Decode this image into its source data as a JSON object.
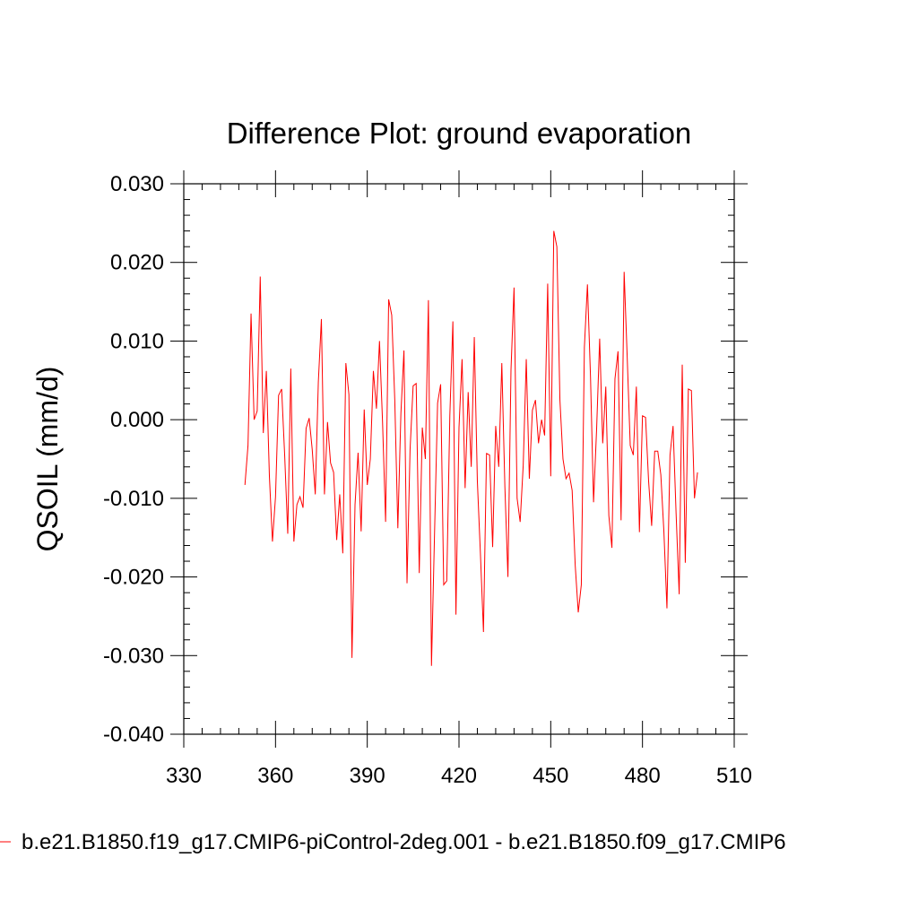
{
  "chart_data": {
    "type": "line",
    "title": "Difference Plot: ground evaporation",
    "ylabel": "QSOIL  (mm/d)",
    "xlabel": "",
    "xlim": [
      330,
      510
    ],
    "ylim": [
      -0.04,
      0.03
    ],
    "xticks": [
      330,
      360,
      390,
      420,
      450,
      480,
      510
    ],
    "xtick_labels": [
      "330",
      "360",
      "390",
      "420",
      "450",
      "480",
      "510"
    ],
    "yticks": [
      -0.04,
      -0.03,
      -0.02,
      -0.01,
      0.0,
      0.01,
      0.02,
      0.03
    ],
    "ytick_labels": [
      "-0.040",
      "-0.030",
      "-0.020",
      "-0.010",
      "0.000",
      "0.010",
      "0.020",
      "0.030"
    ],
    "grid": false,
    "legend_position": "bottom",
    "series": [
      {
        "name": "b.e21.B1850.f19_g17.CMIP6-piControl-2deg.001 - b.e21.B1850.f09_g17.CMIP6",
        "color": "#ff0000",
        "x_start": 350,
        "x_step": 1,
        "values": [
          -0.0083,
          -0.0033,
          0.0135,
          0.0,
          0.0011,
          0.0182,
          -0.0017,
          0.0062,
          -0.0072,
          -0.0155,
          -0.0098,
          0.0031,
          0.0039,
          -0.0046,
          -0.0145,
          0.0065,
          -0.0155,
          -0.0108,
          -0.0098,
          -0.0112,
          -0.0011,
          0.0002,
          -0.0038,
          -0.0095,
          0.0048,
          0.0128,
          -0.0095,
          -0.0003,
          -0.0055,
          -0.0067,
          -0.0153,
          -0.0095,
          -0.017,
          0.0072,
          0.0032,
          -0.0303,
          -0.0108,
          -0.0042,
          -0.0142,
          0.0013,
          -0.0083,
          -0.005,
          0.0062,
          0.0014,
          0.01,
          -0.0003,
          -0.013,
          0.0153,
          0.0133,
          0.0025,
          -0.0138,
          0.0008,
          0.0088,
          -0.0208,
          -0.0038,
          0.0043,
          0.0046,
          -0.0195,
          -0.001,
          -0.005,
          0.0152,
          -0.0313,
          -0.0145,
          0.0021,
          0.0045,
          -0.021,
          -0.0205,
          0.0005,
          0.0125,
          -0.0248,
          -0.001,
          0.0077,
          -0.0087,
          0.0035,
          -0.006,
          0.0105,
          -0.0078,
          -0.017,
          -0.027,
          -0.0043,
          -0.0045,
          -0.0162,
          -0.0008,
          -0.006,
          0.0072,
          -0.0085,
          -0.02,
          0.0063,
          0.0168,
          -0.01,
          -0.013,
          -0.0058,
          0.0077,
          -0.0075,
          0.0012,
          0.0025,
          -0.003,
          0.0,
          -0.002,
          0.0173,
          -0.0072,
          0.024,
          0.022,
          0.0025,
          -0.005,
          -0.0075,
          -0.0068,
          -0.009,
          -0.0185,
          -0.0245,
          -0.021,
          0.0092,
          0.0172,
          0.0055,
          -0.0105,
          -0.0012,
          0.0103,
          -0.003,
          0.0042,
          -0.0122,
          -0.0163,
          0.0052,
          0.0087,
          -0.0128,
          0.0188,
          0.008,
          -0.0033,
          -0.0045,
          0.0042,
          -0.0143,
          0.0005,
          0.0003,
          -0.0078,
          -0.0135,
          -0.004,
          -0.004,
          -0.007,
          -0.0142,
          -0.024,
          -0.0045,
          -0.0008,
          -0.012,
          -0.0222,
          0.007,
          -0.0182,
          0.0039,
          0.0037,
          -0.01,
          -0.0067
        ]
      }
    ]
  }
}
